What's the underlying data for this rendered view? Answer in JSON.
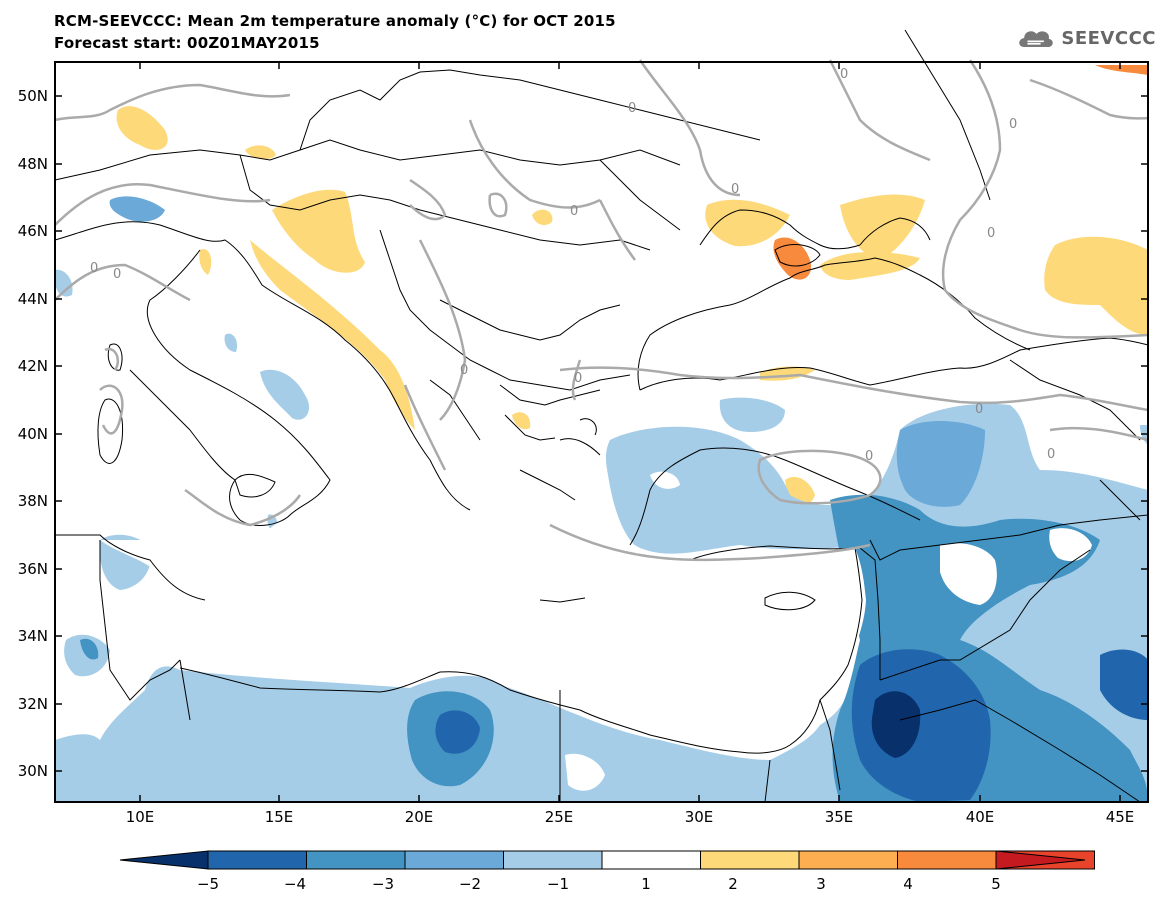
{
  "header": {
    "title_line_1": "RCM-SEEVCCC: Mean 2m temperature anomaly (°C) for OCT 2015",
    "title_line_2": "Forecast start: 00Z01MAY2015",
    "logo_text": "SEEVCCC"
  },
  "map": {
    "lat_labels": [
      "50N",
      "48N",
      "46N",
      "44N",
      "42N",
      "40N",
      "38N",
      "36N",
      "34N",
      "32N",
      "30N"
    ],
    "lon_labels": [
      "10E",
      "15E",
      "20E",
      "25E",
      "30E",
      "35E",
      "40E",
      "45E"
    ],
    "contour_label": "0",
    "colors": {
      "land_outline": "#000000",
      "contour_zero": "#aaaaaa",
      "sea": "#ffffff"
    }
  },
  "colorbar": {
    "tick_labels": [
      "−5",
      "−4",
      "−3",
      "−2",
      "−1",
      "1",
      "2",
      "3",
      "4",
      "5"
    ],
    "colors": [
      "#08306b",
      "#2166ac",
      "#4393c3",
      "#6ba9d8",
      "#a6cde8",
      "#ffffff",
      "#fdd97a",
      "#fcae50",
      "#f78a3d",
      "#e8432b",
      "#c51b20"
    ]
  }
}
